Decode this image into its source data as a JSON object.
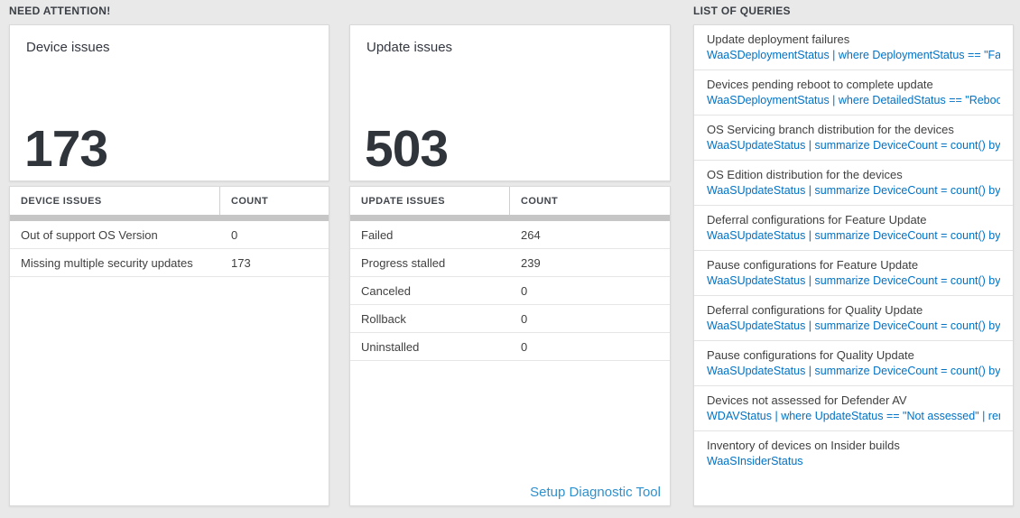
{
  "sections": {
    "need_attention_label": "NEED ATTENTION!",
    "list_of_queries_label": "LIST OF QUERIES"
  },
  "device_tile": {
    "title": "Device issues",
    "count": "173",
    "table": {
      "headers": [
        "DEVICE ISSUES",
        "COUNT"
      ],
      "rows": [
        {
          "label": "Out of support OS Version",
          "count": "0"
        },
        {
          "label": "Missing multiple security updates",
          "count": "173"
        }
      ]
    }
  },
  "update_tile": {
    "title": "Update issues",
    "count": "503",
    "table": {
      "headers": [
        "UPDATE ISSUES",
        "COUNT"
      ],
      "rows": [
        {
          "label": "Failed",
          "count": "264"
        },
        {
          "label": "Progress stalled",
          "count": "239"
        },
        {
          "label": "Canceled",
          "count": "0"
        },
        {
          "label": "Rollback",
          "count": "0"
        },
        {
          "label": "Uninstalled",
          "count": "0"
        }
      ]
    },
    "setup_link_label": "Setup Diagnostic Tool"
  },
  "queries": {
    "items": [
      {
        "title": "Update deployment failures",
        "query": "WaaSDeploymentStatus | where DeploymentStatus == \"Failed\" |..."
      },
      {
        "title": "Devices pending reboot to complete update",
        "query": "WaaSDeploymentStatus | where DetailedStatus == \"Reboot pend..."
      },
      {
        "title": "OS Servicing branch distribution for the devices",
        "query": "WaaSUpdateStatus | summarize DeviceCount = count() by OSSer..."
      },
      {
        "title": "OS Edition distribution for the devices",
        "query": "WaaSUpdateStatus | summarize DeviceCount = count() by OSEdit..."
      },
      {
        "title": "Deferral configurations for Feature Update",
        "query": "WaaSUpdateStatus | summarize DeviceCount = count() by Featur..."
      },
      {
        "title": "Pause configurations for Feature Update",
        "query": "WaaSUpdateStatus | summarize DeviceCount = count() by Featur..."
      },
      {
        "title": "Deferral configurations for Quality Update",
        "query": "WaaSUpdateStatus | summarize DeviceCount = count() by Qualit..."
      },
      {
        "title": "Pause configurations for Quality Update",
        "query": "WaaSUpdateStatus | summarize DeviceCount = count() by Qualit..."
      },
      {
        "title": "Devices not assessed for Defender AV",
        "query": "WDAVStatus | where UpdateStatus == \"Not assessed\" | render ta..."
      },
      {
        "title": "Inventory of devices on Insider builds",
        "query": "WaaSInsiderStatus"
      }
    ]
  },
  "colors": {
    "page_background": "#e9e9e9",
    "tile_background": "#ffffff",
    "query_link_blue": "#0072c6",
    "setup_link_blue": "#2e91cf",
    "big_number_text": "#2f353b",
    "section_label_text": "#3b4046",
    "table_header_bar_gray": "#c6c6c6"
  }
}
